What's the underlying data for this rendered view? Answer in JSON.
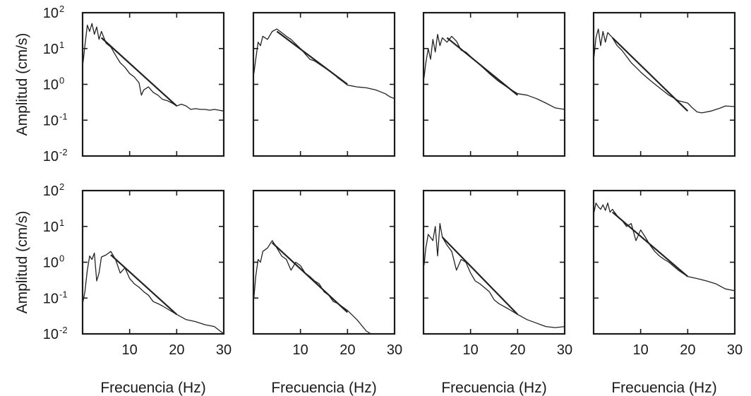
{
  "figure": {
    "ylabel": "Amplitud (cm/s)",
    "xlabel": "Frecuencia (Hz)",
    "x_ticks": [
      "10",
      "20",
      "30"
    ],
    "y_ticks": [
      {
        "base": "10",
        "exp": "2"
      },
      {
        "base": "10",
        "exp": "1"
      },
      {
        "base": "10",
        "exp": "0"
      },
      {
        "base": "10",
        "exp": "-1"
      },
      {
        "base": "10",
        "exp": "-2"
      }
    ]
  },
  "chart_data": [
    {
      "type": "line",
      "row": 1,
      "col": 1,
      "xlabel": "",
      "ylabel": "Amplitud (cm/s)",
      "xlim": [
        0,
        30
      ],
      "ylim": [
        0.01,
        100
      ],
      "yscale": "log",
      "series": [
        {
          "role": "observed",
          "points": [
            [
              0.1,
              4
            ],
            [
              0.5,
              12
            ],
            [
              1,
              45
            ],
            [
              1.5,
              30
            ],
            [
              2,
              50
            ],
            [
              2.5,
              25
            ],
            [
              3,
              40
            ],
            [
              3.5,
              18
            ],
            [
              4,
              30
            ],
            [
              5,
              14
            ],
            [
              6,
              11
            ],
            [
              7,
              6.5
            ],
            [
              8,
              4
            ],
            [
              9,
              3
            ],
            [
              10,
              2
            ],
            [
              11,
              1.6
            ],
            [
              12,
              1.1
            ],
            [
              12.5,
              0.5
            ],
            [
              13,
              0.7
            ],
            [
              14,
              0.85
            ],
            [
              15,
              0.6
            ],
            [
              16,
              0.5
            ],
            [
              17,
              0.38
            ],
            [
              18,
              0.35
            ],
            [
              19,
              0.3
            ],
            [
              20,
              0.25
            ],
            [
              21,
              0.28
            ],
            [
              22,
              0.25
            ],
            [
              23,
              0.2
            ],
            [
              24,
              0.21
            ],
            [
              25,
              0.2
            ],
            [
              26,
              0.2
            ],
            [
              27,
              0.19
            ],
            [
              28,
              0.2
            ],
            [
              29,
              0.19
            ],
            [
              30,
              0.18
            ]
          ]
        },
        {
          "role": "fit",
          "points": [
            [
              4,
              20
            ],
            [
              20,
              0.25
            ]
          ]
        }
      ]
    },
    {
      "type": "line",
      "row": 1,
      "col": 2,
      "xlabel": "",
      "ylabel": "",
      "xlim": [
        0,
        30
      ],
      "ylim": [
        0.01,
        100
      ],
      "yscale": "log",
      "series": [
        {
          "role": "observed",
          "points": [
            [
              0.1,
              2
            ],
            [
              0.5,
              5
            ],
            [
              1,
              15
            ],
            [
              1.5,
              12
            ],
            [
              2,
              22
            ],
            [
              3,
              18
            ],
            [
              4,
              30
            ],
            [
              5,
              35
            ],
            [
              6,
              28
            ],
            [
              7,
              22
            ],
            [
              8,
              18
            ],
            [
              10,
              10
            ],
            [
              12,
              5
            ],
            [
              13,
              4.5
            ],
            [
              15,
              3
            ],
            [
              17,
              2
            ],
            [
              18,
              1.5
            ],
            [
              19,
              1.2
            ],
            [
              20,
              0.95
            ],
            [
              21,
              0.9
            ],
            [
              22,
              0.85
            ],
            [
              24,
              0.8
            ],
            [
              26,
              0.7
            ],
            [
              28,
              0.55
            ],
            [
              29,
              0.45
            ],
            [
              30,
              0.4
            ]
          ]
        },
        {
          "role": "fit",
          "points": [
            [
              5,
              30
            ],
            [
              20,
              1.0
            ]
          ]
        }
      ]
    },
    {
      "type": "line",
      "row": 1,
      "col": 3,
      "xlabel": "",
      "ylabel": "",
      "xlim": [
        0,
        30
      ],
      "ylim": [
        0.01,
        100
      ],
      "yscale": "log",
      "series": [
        {
          "role": "observed",
          "points": [
            [
              0.1,
              1.5
            ],
            [
              0.5,
              4
            ],
            [
              1,
              10
            ],
            [
              1.5,
              5
            ],
            [
              2,
              18
            ],
            [
              2.5,
              8
            ],
            [
              3,
              25
            ],
            [
              3.5,
              12
            ],
            [
              4,
              20
            ],
            [
              5,
              15
            ],
            [
              6,
              22
            ],
            [
              7,
              16
            ],
            [
              8,
              9
            ],
            [
              9,
              8
            ],
            [
              10,
              6
            ],
            [
              12,
              3.5
            ],
            [
              14,
              2
            ],
            [
              16,
              1.2
            ],
            [
              18,
              0.8
            ],
            [
              20,
              0.55
            ],
            [
              22,
              0.5
            ],
            [
              24,
              0.4
            ],
            [
              26,
              0.3
            ],
            [
              28,
              0.22
            ],
            [
              30,
              0.2
            ]
          ]
        },
        {
          "role": "fit",
          "points": [
            [
              5,
              20
            ],
            [
              20,
              0.5
            ]
          ]
        }
      ]
    },
    {
      "type": "line",
      "row": 1,
      "col": 4,
      "xlabel": "",
      "ylabel": "",
      "xlim": [
        0,
        30
      ],
      "ylim": [
        0.01,
        100
      ],
      "yscale": "log",
      "series": [
        {
          "role": "observed",
          "points": [
            [
              0.1,
              6
            ],
            [
              0.5,
              20
            ],
            [
              1,
              35
            ],
            [
              1.5,
              12
            ],
            [
              2,
              30
            ],
            [
              2.5,
              15
            ],
            [
              3,
              28
            ],
            [
              4,
              20
            ],
            [
              5,
              12
            ],
            [
              6,
              9
            ],
            [
              7,
              6
            ],
            [
              8,
              4
            ],
            [
              9,
              3
            ],
            [
              10,
              2.2
            ],
            [
              12,
              1.3
            ],
            [
              14,
              0.8
            ],
            [
              16,
              0.5
            ],
            [
              18,
              0.35
            ],
            [
              20,
              0.3
            ],
            [
              21,
              0.22
            ],
            [
              22,
              0.17
            ],
            [
              23,
              0.16
            ],
            [
              25,
              0.18
            ],
            [
              27,
              0.22
            ],
            [
              28,
              0.25
            ],
            [
              30,
              0.24
            ]
          ]
        },
        {
          "role": "fit",
          "points": [
            [
              4,
              20
            ],
            [
              20,
              0.18
            ]
          ]
        }
      ]
    },
    {
      "type": "line",
      "row": 2,
      "col": 1,
      "xlabel": "Frecuencia (Hz)",
      "ylabel": "Amplitud (cm/s)",
      "xlim": [
        0,
        30
      ],
      "ylim": [
        0.01,
        100
      ],
      "yscale": "log",
      "series": [
        {
          "role": "observed",
          "points": [
            [
              0.1,
              0.08
            ],
            [
              0.5,
              0.15
            ],
            [
              1,
              0.6
            ],
            [
              1.5,
              1.5
            ],
            [
              2,
              1.2
            ],
            [
              2.5,
              1.8
            ],
            [
              3,
              0.3
            ],
            [
              3.5,
              0.5
            ],
            [
              4,
              1.4
            ],
            [
              5,
              1.6
            ],
            [
              6,
              2
            ],
            [
              7,
              1.2
            ],
            [
              8,
              0.5
            ],
            [
              9,
              0.7
            ],
            [
              10,
              0.35
            ],
            [
              11,
              0.25
            ],
            [
              12,
              0.2
            ],
            [
              13,
              0.15
            ],
            [
              14,
              0.12
            ],
            [
              15,
              0.08
            ],
            [
              16,
              0.07
            ],
            [
              17,
              0.06
            ],
            [
              18,
              0.05
            ],
            [
              20,
              0.035
            ],
            [
              22,
              0.025
            ],
            [
              24,
              0.022
            ],
            [
              26,
              0.018
            ],
            [
              28,
              0.016
            ],
            [
              30,
              0.01
            ]
          ]
        },
        {
          "role": "fit",
          "points": [
            [
              6,
              1.6
            ],
            [
              20,
              0.035
            ]
          ]
        }
      ]
    },
    {
      "type": "line",
      "row": 2,
      "col": 2,
      "xlabel": "Frecuencia (Hz)",
      "ylabel": "",
      "xlim": [
        0,
        30
      ],
      "ylim": [
        0.01,
        100
      ],
      "yscale": "log",
      "series": [
        {
          "role": "observed",
          "points": [
            [
              0.1,
              0.1
            ],
            [
              0.5,
              0.4
            ],
            [
              1,
              1.2
            ],
            [
              1.5,
              1
            ],
            [
              2,
              2
            ],
            [
              3,
              2.5
            ],
            [
              4,
              4
            ],
            [
              5,
              2.5
            ],
            [
              6,
              1.5
            ],
            [
              7,
              1.2
            ],
            [
              8,
              0.6
            ],
            [
              9,
              1
            ],
            [
              10,
              0.8
            ],
            [
              11,
              0.5
            ],
            [
              12,
              0.4
            ],
            [
              13,
              0.3
            ],
            [
              14,
              0.25
            ],
            [
              15,
              0.15
            ],
            [
              16,
              0.12
            ],
            [
              17,
              0.08
            ],
            [
              18,
              0.07
            ],
            [
              20,
              0.045
            ],
            [
              22,
              0.025
            ],
            [
              24,
              0.012
            ],
            [
              25,
              0.01
            ]
          ]
        },
        {
          "role": "fit",
          "points": [
            [
              4,
              3.5
            ],
            [
              20,
              0.04
            ]
          ]
        }
      ]
    },
    {
      "type": "line",
      "row": 2,
      "col": 3,
      "xlabel": "Frecuencia (Hz)",
      "ylabel": "",
      "xlim": [
        0,
        30
      ],
      "ylim": [
        0.01,
        100
      ],
      "yscale": "log",
      "series": [
        {
          "role": "observed",
          "points": [
            [
              0.1,
              0.8
            ],
            [
              0.5,
              2.5
            ],
            [
              1,
              6
            ],
            [
              2,
              4
            ],
            [
              2.5,
              10
            ],
            [
              3,
              1.5
            ],
            [
              3.5,
              12
            ],
            [
              4,
              5
            ],
            [
              5,
              3
            ],
            [
              6,
              2
            ],
            [
              7,
              0.6
            ],
            [
              8,
              1.2
            ],
            [
              9,
              1
            ],
            [
              10,
              0.5
            ],
            [
              11,
              0.3
            ],
            [
              12,
              0.25
            ],
            [
              14,
              0.15
            ],
            [
              15,
              0.09
            ],
            [
              16,
              0.07
            ],
            [
              18,
              0.05
            ],
            [
              20,
              0.035
            ],
            [
              22,
              0.025
            ],
            [
              24,
              0.02
            ],
            [
              26,
              0.016
            ],
            [
              28,
              0.015
            ],
            [
              30,
              0.016
            ]
          ]
        },
        {
          "role": "fit",
          "points": [
            [
              4,
              5
            ],
            [
              20,
              0.035
            ]
          ]
        }
      ]
    },
    {
      "type": "line",
      "row": 2,
      "col": 4,
      "xlabel": "Frecuencia (Hz)",
      "ylabel": "",
      "xlim": [
        0,
        30
      ],
      "ylim": [
        0.01,
        100
      ],
      "yscale": "log",
      "series": [
        {
          "role": "observed",
          "points": [
            [
              0.1,
              25
            ],
            [
              0.5,
              45
            ],
            [
              1,
              35
            ],
            [
              1.5,
              30
            ],
            [
              2,
              40
            ],
            [
              2.5,
              28
            ],
            [
              3,
              45
            ],
            [
              3.5,
              25
            ],
            [
              4,
              30
            ],
            [
              5,
              20
            ],
            [
              6,
              15
            ],
            [
              7,
              10
            ],
            [
              8,
              12
            ],
            [
              9,
              4
            ],
            [
              10,
              8
            ],
            [
              11,
              5
            ],
            [
              12,
              3
            ],
            [
              13,
              2
            ],
            [
              14,
              1.5
            ],
            [
              15,
              1.2
            ],
            [
              16,
              1
            ],
            [
              18,
              0.6
            ],
            [
              20,
              0.4
            ],
            [
              22,
              0.35
            ],
            [
              24,
              0.3
            ],
            [
              26,
              0.25
            ],
            [
              28,
              0.18
            ],
            [
              30,
              0.16
            ]
          ]
        },
        {
          "role": "fit",
          "points": [
            [
              4,
              25
            ],
            [
              20,
              0.4
            ]
          ]
        }
      ]
    }
  ]
}
